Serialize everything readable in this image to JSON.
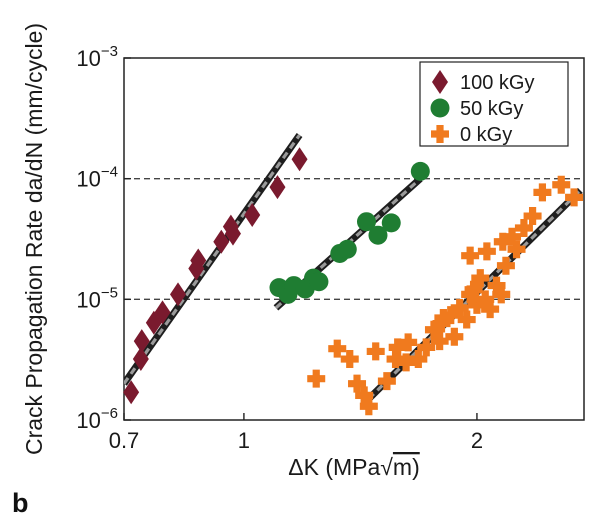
{
  "panel_label": "b",
  "chart_data": {
    "type": "scatter",
    "xlabel_parts": {
      "delta": "Δ",
      "letter": "K (MPa",
      "root": "√",
      "unit": "m)"
    },
    "ylabel": "Crack Propagation Rate da/dN (mm/cycle)",
    "xscale": "log",
    "yscale": "log",
    "xlim": [
      0.7,
      2.75
    ],
    "ylim": [
      1e-06,
      0.001
    ],
    "x_ticks": [
      {
        "value": 0.7,
        "label": "0.7"
      },
      {
        "value": 1,
        "label": "1"
      },
      {
        "value": 2,
        "label": "2"
      }
    ],
    "y_ticks": [
      {
        "value": 0.001,
        "base": "10",
        "exp": "−3"
      },
      {
        "value": 0.0001,
        "base": "10",
        "exp": "−4"
      },
      {
        "value": 1e-05,
        "base": "10",
        "exp": "−5"
      },
      {
        "value": 1e-06,
        "base": "10",
        "exp": "−6"
      }
    ],
    "reference_lines_y": [
      0.0001,
      1e-05
    ],
    "legend_position": "top-right",
    "series": [
      {
        "name": "100 kGy",
        "marker": "diamond",
        "color": "#7a1a2e",
        "points": [
          [
            0.715,
            1.7e-06
          ],
          [
            0.736,
            3.2e-06
          ],
          [
            0.738,
            4.5e-06
          ],
          [
            0.765,
            6.4e-06
          ],
          [
            0.785,
            7.8e-06
          ],
          [
            0.822,
            1.1e-05
          ],
          [
            0.868,
            1.8e-05
          ],
          [
            0.873,
            2.1e-05
          ],
          [
            0.935,
            3e-05
          ],
          [
            0.968,
            3.5e-05
          ],
          [
            0.962,
            4e-05
          ],
          [
            1.025,
            5e-05
          ],
          [
            1.105,
            8.5e-05
          ],
          [
            1.18,
            0.000145
          ]
        ],
        "fit": [
          [
            0.7,
            2e-06
          ],
          [
            1.18,
            0.00023
          ]
        ]
      },
      {
        "name": "50 kGy",
        "marker": "circle",
        "color": "#1f7d32",
        "points": [
          [
            1.11,
            1.25e-05
          ],
          [
            1.14,
            1.1e-05
          ],
          [
            1.16,
            1.3e-05
          ],
          [
            1.2,
            1.22e-05
          ],
          [
            1.23,
            1.5e-05
          ],
          [
            1.25,
            1.4e-05
          ],
          [
            1.33,
            2.4e-05
          ],
          [
            1.36,
            2.6e-05
          ],
          [
            1.44,
            4.4e-05
          ],
          [
            1.49,
            3.4e-05
          ],
          [
            1.55,
            4.3e-05
          ],
          [
            1.69,
            0.000115
          ]
        ],
        "fit": [
          [
            1.1,
            8.5e-06
          ],
          [
            1.69,
            0.0001
          ]
        ]
      },
      {
        "name": "0 kGy",
        "marker": "plus",
        "color": "#f07a1e",
        "points": [
          [
            1.24,
            2.2e-06
          ],
          [
            1.32,
            3.9e-06
          ],
          [
            1.37,
            3.2e-06
          ],
          [
            1.4,
            2e-06
          ],
          [
            1.43,
            1.6e-06
          ],
          [
            1.45,
            1.3e-06
          ],
          [
            1.48,
            3.7e-06
          ],
          [
            1.53,
            2.1e-06
          ],
          [
            1.57,
            3.2e-06
          ],
          [
            1.58,
            4e-06
          ],
          [
            1.62,
            3e-06
          ],
          [
            1.63,
            4.4e-06
          ],
          [
            1.68,
            3.2e-06
          ],
          [
            1.72,
            4e-06
          ],
          [
            1.76,
            5.6e-06
          ],
          [
            1.79,
            4.5e-06
          ],
          [
            1.8,
            6.3e-06
          ],
          [
            1.81,
            7e-06
          ],
          [
            1.85,
            7.4e-06
          ],
          [
            1.87,
            4.9e-06
          ],
          [
            1.9,
            8.5e-06
          ],
          [
            1.94,
            6.8e-06
          ],
          [
            1.96,
            1.1e-05
          ],
          [
            1.98,
            1.2e-05
          ],
          [
            2.0,
            9e-06
          ],
          [
            2.02,
            1.5e-05
          ],
          [
            2.05,
            1e-05
          ],
          [
            2.08,
            8.3e-06
          ],
          [
            2.12,
            1.3e-05
          ],
          [
            2.15,
            1.1e-05
          ],
          [
            2.18,
            1.9e-05
          ],
          [
            1.96,
            2.3e-05
          ],
          [
            2.06,
            2.5e-05
          ],
          [
            2.16,
            3e-05
          ],
          [
            2.22,
            3.3e-05
          ],
          [
            2.25,
            2.6e-05
          ],
          [
            2.3,
            3.9e-05
          ],
          [
            2.36,
            4.9e-05
          ],
          [
            2.43,
            7.7e-05
          ],
          [
            2.57,
            8.9e-05
          ],
          [
            2.67,
            7e-05
          ]
        ],
        "fit": [
          [
            1.45,
            1.5e-06
          ],
          [
            2.72,
            8e-05
          ]
        ]
      }
    ]
  }
}
